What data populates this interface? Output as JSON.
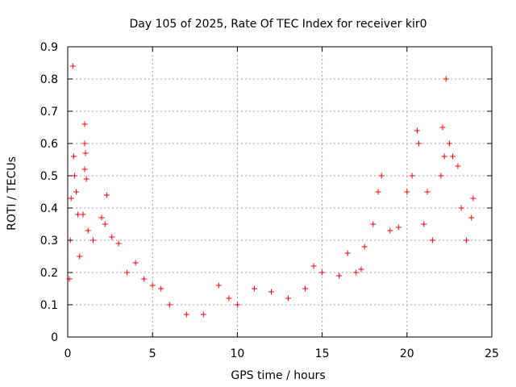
{
  "chart_data": {
    "type": "scatter",
    "title": "Day 105 of 2025, Rate Of TEC Index for receiver kir0",
    "xlabel": "GPS time / hours",
    "ylabel": "ROTI / TECUs",
    "xlim": [
      0,
      25
    ],
    "ylim": [
      0,
      0.9
    ],
    "xticks": [
      0,
      5,
      10,
      15,
      20,
      25
    ],
    "yticks": [
      0,
      0.1,
      0.2,
      0.3,
      0.4,
      0.5,
      0.6,
      0.7,
      0.8,
      0.9
    ],
    "grid": true,
    "marker": "plus",
    "color": "#ff0000",
    "series": [
      {
        "name": "kir0",
        "points": [
          [
            0.1,
            0.18
          ],
          [
            0.15,
            0.3
          ],
          [
            0.2,
            0.43
          ],
          [
            0.3,
            0.84
          ],
          [
            0.35,
            0.56
          ],
          [
            0.4,
            0.5
          ],
          [
            0.5,
            0.45
          ],
          [
            0.6,
            0.38
          ],
          [
            0.7,
            0.25
          ],
          [
            0.9,
            0.38
          ],
          [
            1.0,
            0.66
          ],
          [
            1.0,
            0.6
          ],
          [
            1.05,
            0.57
          ],
          [
            1.0,
            0.52
          ],
          [
            1.1,
            0.49
          ],
          [
            1.2,
            0.33
          ],
          [
            1.5,
            0.3
          ],
          [
            2.0,
            0.37
          ],
          [
            2.2,
            0.35
          ],
          [
            2.3,
            0.44
          ],
          [
            2.6,
            0.31
          ],
          [
            3.0,
            0.29
          ],
          [
            3.5,
            0.2
          ],
          [
            4.0,
            0.23
          ],
          [
            4.5,
            0.18
          ],
          [
            5.0,
            0.16
          ],
          [
            5.5,
            0.15
          ],
          [
            6.0,
            0.1
          ],
          [
            7.0,
            0.07
          ],
          [
            8.0,
            0.07
          ],
          [
            8.9,
            0.16
          ],
          [
            9.5,
            0.12
          ],
          [
            10.0,
            0.1
          ],
          [
            11.0,
            0.15
          ],
          [
            12.0,
            0.14
          ],
          [
            13.0,
            0.12
          ],
          [
            14.0,
            0.15
          ],
          [
            14.5,
            0.22
          ],
          [
            15.0,
            0.2
          ],
          [
            16.0,
            0.19
          ],
          [
            16.5,
            0.26
          ],
          [
            17.0,
            0.2
          ],
          [
            17.3,
            0.21
          ],
          [
            17.5,
            0.28
          ],
          [
            18.0,
            0.35
          ],
          [
            18.3,
            0.45
          ],
          [
            18.5,
            0.5
          ],
          [
            19.0,
            0.33
          ],
          [
            19.5,
            0.34
          ],
          [
            20.0,
            0.45
          ],
          [
            20.3,
            0.5
          ],
          [
            20.6,
            0.64
          ],
          [
            20.7,
            0.6
          ],
          [
            21.0,
            0.35
          ],
          [
            21.2,
            0.45
          ],
          [
            21.5,
            0.3
          ],
          [
            22.0,
            0.5
          ],
          [
            22.1,
            0.65
          ],
          [
            22.2,
            0.56
          ],
          [
            22.3,
            0.8
          ],
          [
            22.5,
            0.6
          ],
          [
            22.7,
            0.56
          ],
          [
            23.0,
            0.53
          ],
          [
            23.2,
            0.4
          ],
          [
            23.5,
            0.3
          ],
          [
            23.8,
            0.37
          ],
          [
            23.9,
            0.43
          ]
        ]
      }
    ]
  }
}
